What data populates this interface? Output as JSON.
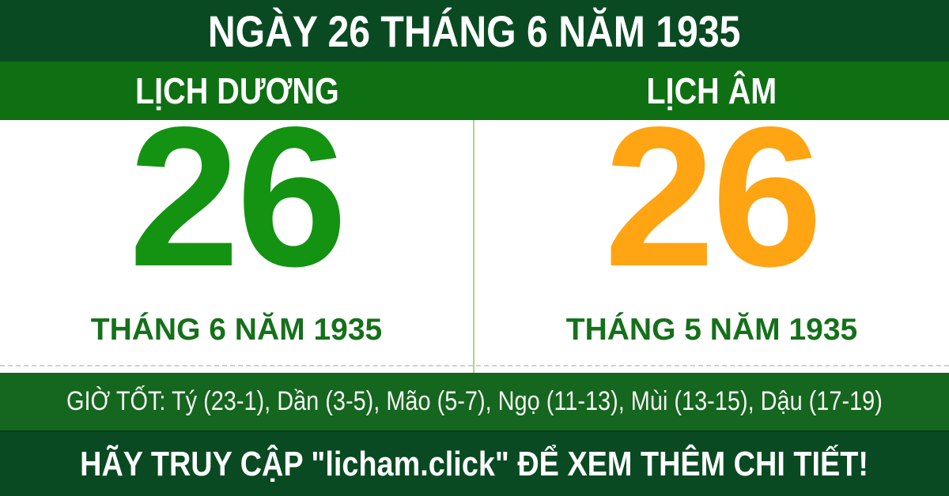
{
  "header": {
    "title": "NGÀY 26 THÁNG 6 NĂM 1935"
  },
  "calendars": {
    "solar": {
      "label": "LỊCH DƯƠNG",
      "day": "26",
      "day_color": "#149312",
      "month_year": "THÁNG 6 NĂM 1935"
    },
    "lunar": {
      "label": "LỊCH ÂM",
      "day": "26",
      "day_color": "#ffa413",
      "month_year": "THÁNG 5 NĂM 1935"
    }
  },
  "good_hours": {
    "text": "GIỜ TỐT: Tý (23-1), Dần (3-5), Mão (5-7), Ngọ (11-13), Mùi (13-15), Dậu (17-19)"
  },
  "footer": {
    "text": "HÃY TRUY CẬP \"licham.click\" ĐỂ XEM THÊM CHI TIẾT!"
  },
  "colors": {
    "header_footer_green": "#094a22",
    "band_green": "#0e7013",
    "hours_bar_green": "#15661e",
    "solar_day_green": "#149312",
    "lunar_day_orange": "#ffa413",
    "month_text_green": "#15701a",
    "divider_light_green": "#a6d788",
    "text_white": "#ffffff"
  }
}
